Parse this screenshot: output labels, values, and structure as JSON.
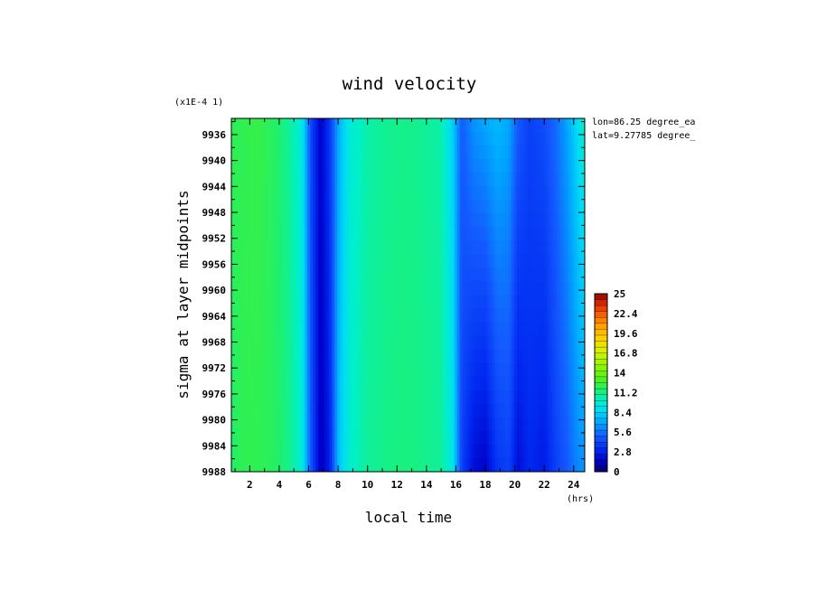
{
  "chart_data": {
    "type": "heatmap",
    "title": "wind velocity",
    "xlabel": "local time",
    "ylabel": "sigma at layer midpoints",
    "y_scale_note": "(x1E-4 1)",
    "x_units": "(hrs)",
    "annotations": [
      "lon=86.25 degree_ea",
      "lat=9.27785 degree_"
    ],
    "xlim": [
      0.75,
      24.75
    ],
    "ylim": [
      9933.5,
      9988
    ],
    "y_inverted": true,
    "x_ticks": [
      2,
      4,
      6,
      8,
      10,
      12,
      14,
      16,
      18,
      20,
      22,
      24
    ],
    "x_tick_labels": [
      "2",
      "4",
      "6",
      "8",
      "10",
      "12",
      "14",
      "16",
      "18",
      "20",
      "22",
      "24"
    ],
    "y_ticks": [
      9936,
      9940,
      9944,
      9948,
      9952,
      9956,
      9960,
      9964,
      9968,
      9972,
      9976,
      9980,
      9984,
      9988
    ],
    "y_tick_labels": [
      "9936",
      "9940",
      "9944",
      "9948",
      "9952",
      "9956",
      "9960",
      "9964",
      "9968",
      "9972",
      "9976",
      "9980",
      "9984",
      "9988"
    ],
    "colorbar": {
      "min": 0,
      "max": 25,
      "labels": [
        "25",
        "22.4",
        "19.6",
        "16.8",
        "14",
        "11.2",
        "8.4",
        "5.6",
        "2.8",
        "0"
      ]
    },
    "field": {
      "x": [
        0.75,
        1.5,
        2.5,
        3.5,
        4.5,
        5.5,
        6.2,
        6.8,
        7.4,
        8,
        8.8,
        10,
        11,
        12,
        13,
        14,
        15,
        15.8,
        16.4,
        17.2,
        18,
        18.8,
        19.6,
        20.2,
        21,
        22,
        22.8,
        23.6,
        24.2,
        24.75
      ],
      "top": [
        12,
        12,
        12.2,
        11.8,
        11,
        9.5,
        4,
        1.5,
        3.5,
        7,
        9.5,
        10.5,
        10.8,
        11,
        11,
        10.8,
        10.5,
        8,
        5,
        6.5,
        7,
        7.5,
        7,
        5,
        4,
        4.5,
        5.5,
        7,
        8.5,
        10
      ],
      "bottom": [
        11.5,
        12,
        12,
        11.8,
        11.2,
        9.8,
        4.5,
        1.2,
        2.5,
        7.5,
        9.8,
        10.8,
        11,
        11.2,
        11.2,
        11,
        10.8,
        9,
        4,
        2,
        1.5,
        3.5,
        4,
        2,
        3,
        2.5,
        4,
        5,
        6,
        6.5
      ]
    }
  }
}
